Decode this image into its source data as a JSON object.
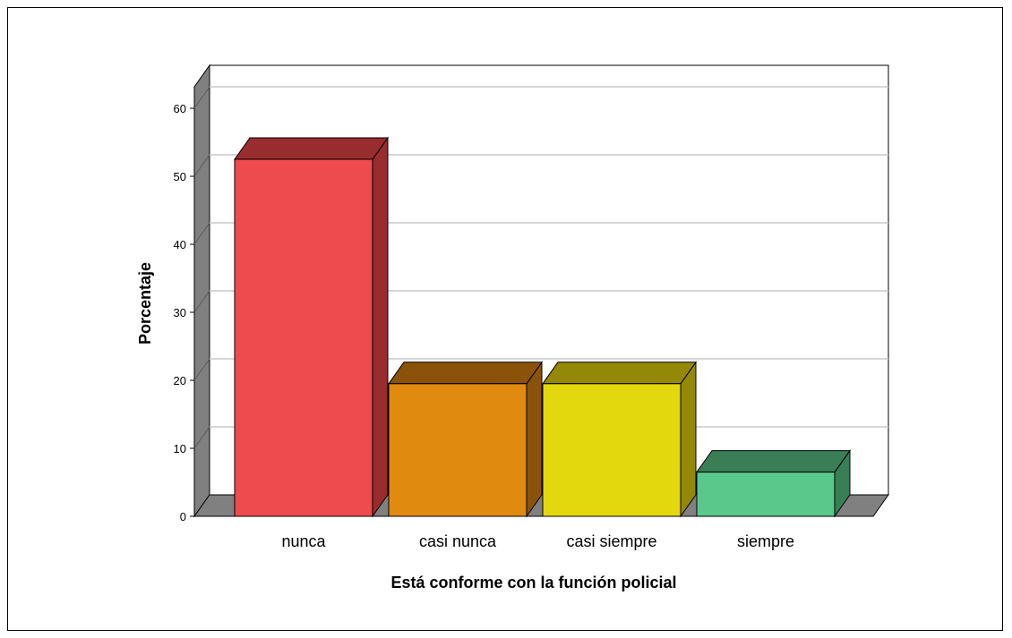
{
  "chart_data": {
    "type": "bar",
    "title": "",
    "xlabel": "Está conforme con la función policial",
    "ylabel": "Porcentaje",
    "categories": [
      "nunca",
      "casi nunca",
      "casi siempre",
      "siempre"
    ],
    "values": [
      52.5,
      19.5,
      19.5,
      6.5
    ],
    "ylim": [
      0,
      63
    ],
    "yticks": [
      "0",
      "10",
      "20",
      "30",
      "40",
      "50",
      "60"
    ],
    "grid": true,
    "three_d": true,
    "colors": {
      "front": [
        "#ee4b4e",
        "#e08a10",
        "#e3d70e",
        "#5ac88a"
      ],
      "top": [
        "#982c2e",
        "#8a5309",
        "#948808",
        "#3a7e56"
      ],
      "side": [
        "#982c2e",
        "#8a5309",
        "#948808",
        "#3a7e56"
      ],
      "wall": "#808080",
      "gridline": "#c8c8c8"
    }
  }
}
